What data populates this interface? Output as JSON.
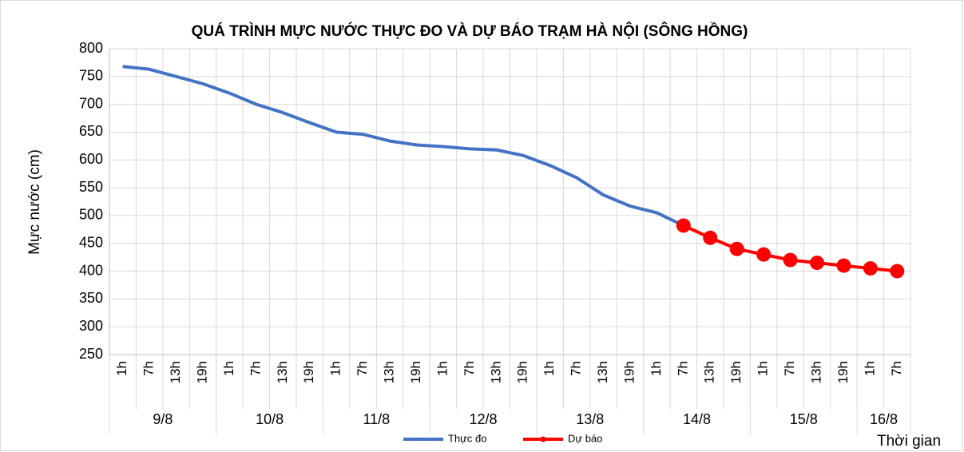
{
  "chart_data": {
    "type": "line",
    "title": "QUÁ TRÌNH MỰC NƯỚC THỰC ĐO VÀ DỰ BÁO TRẠM HÀ NỘI (SÔNG HỒNG)",
    "ylabel": "Mực nước (cm)",
    "xlabel": "Thời gian",
    "category_groups": [
      {
        "label": "9/8",
        "categories": [
          "1h",
          "7h",
          "13h",
          "19h"
        ]
      },
      {
        "label": "10/8",
        "categories": [
          "1h",
          "7h",
          "13h",
          "19h"
        ]
      },
      {
        "label": "11/8",
        "categories": [
          "1h",
          "7h",
          "13h",
          "19h"
        ]
      },
      {
        "label": "12/8",
        "categories": [
          "1h",
          "7h",
          "13h",
          "19h"
        ]
      },
      {
        "label": "13/8",
        "categories": [
          "1h",
          "7h",
          "13h",
          "19h"
        ]
      },
      {
        "label": "14/8",
        "categories": [
          "1h",
          "7h",
          "13h",
          "19h"
        ]
      },
      {
        "label": "15/8",
        "categories": [
          "1h",
          "7h",
          "13h",
          "19h"
        ]
      },
      {
        "label": "16/8",
        "categories": [
          "1h",
          "7h"
        ]
      }
    ],
    "series": [
      {
        "name": "Thực đo",
        "color": "#4472c4",
        "markers": false,
        "values": [
          768,
          763,
          750,
          737,
          720,
          700,
          685,
          667,
          650,
          646,
          634,
          627,
          624,
          620,
          618,
          608,
          590,
          568,
          537,
          517,
          505,
          482,
          null,
          null,
          null,
          null,
          null,
          null,
          null,
          null
        ]
      },
      {
        "name": "Dự báo",
        "color": "#ff0000",
        "markers": true,
        "values": [
          null,
          null,
          null,
          null,
          null,
          null,
          null,
          null,
          null,
          null,
          null,
          null,
          null,
          null,
          null,
          null,
          null,
          null,
          null,
          null,
          null,
          482,
          460,
          440,
          430,
          420,
          415,
          410,
          405,
          400
        ]
      }
    ],
    "ylim": [
      250,
      800
    ],
    "yticks": [
      250,
      300,
      350,
      400,
      450,
      500,
      550,
      600,
      650,
      700,
      750,
      800
    ],
    "grid": true,
    "legend": "bottom"
  }
}
